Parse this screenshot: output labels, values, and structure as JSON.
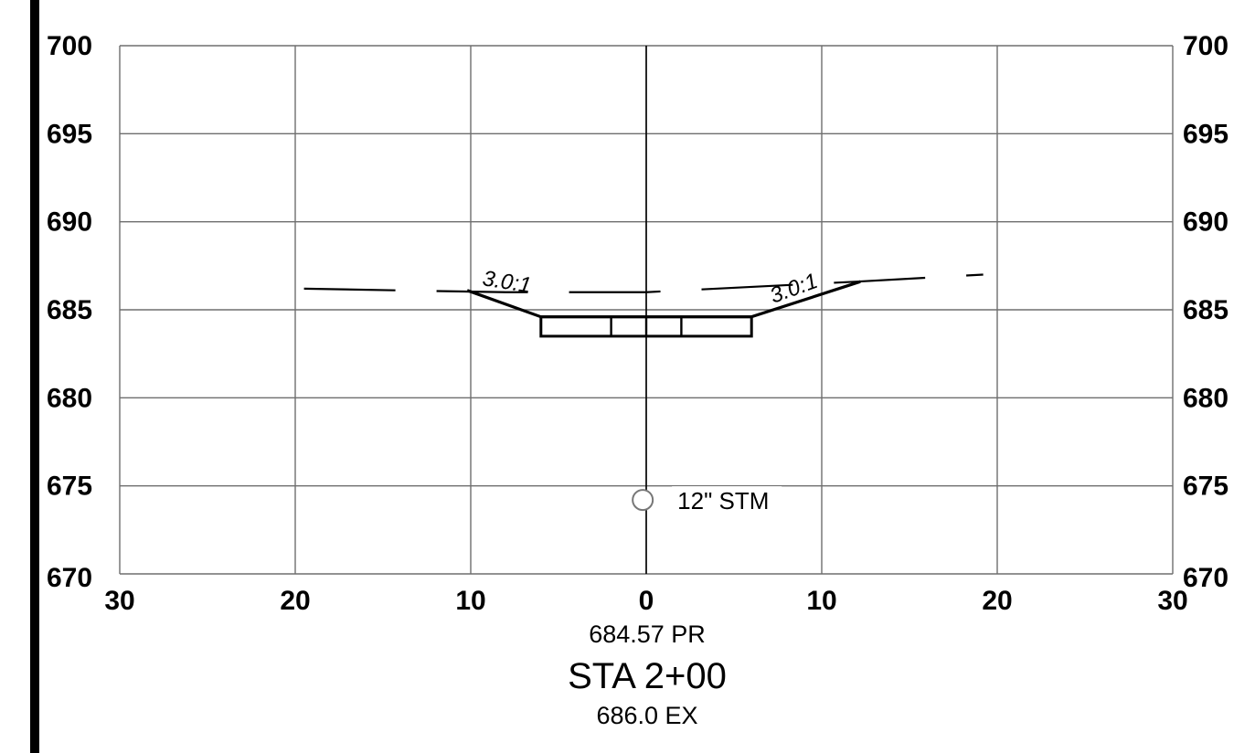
{
  "drawing": {
    "x_axis_ticks": [
      "30",
      "20",
      "10",
      "0",
      "10",
      "20",
      "30"
    ],
    "y_axis_ticks": [
      "700",
      "695",
      "690",
      "685",
      "680",
      "675",
      "670"
    ],
    "x_offsets": [
      -30,
      -20,
      -10,
      0,
      10,
      20,
      30
    ],
    "y_elevations": [
      700,
      695,
      690,
      685,
      680,
      675,
      670
    ],
    "slope_left": "3.0:1",
    "slope_right": "3.0:1",
    "utility_label": "12\" STM",
    "proposed_elevation": "684.57 PR",
    "station": "STA 2+00",
    "existing_elevation": "686.0 EX",
    "colors": {
      "grid": "#6e6e6e",
      "ink": "#000000",
      "utility": "#888888",
      "sheet_border": "#000000"
    }
  },
  "chart_data": {
    "type": "cross-section",
    "xlim": [
      -30,
      30
    ],
    "ylim": [
      670,
      700
    ],
    "x_ticks": [
      -30,
      -20,
      -10,
      0,
      10,
      20,
      30
    ],
    "y_ticks": [
      670,
      675,
      680,
      685,
      690,
      695,
      700
    ],
    "grid": true,
    "existing_ground": [
      [
        -19.5,
        686.2
      ],
      [
        -14,
        686.1
      ],
      [
        -8,
        686.0
      ],
      [
        0,
        686.0
      ],
      [
        6,
        686.3
      ],
      [
        12,
        686.6
      ],
      [
        19.2,
        687.0
      ]
    ],
    "proposed_section": [
      [
        -10.2,
        686.1
      ],
      [
        -6,
        684.6
      ],
      [
        6,
        684.6
      ],
      [
        12.2,
        686.6
      ]
    ],
    "pavement_top": 684.6,
    "pavement_bottom": 683.5,
    "pavement_extent": [
      -6,
      6
    ],
    "pavement_joints": [
      -2,
      0,
      2
    ],
    "utility": {
      "x": -0.2,
      "y": 674.2,
      "label": "12\" STM"
    }
  }
}
